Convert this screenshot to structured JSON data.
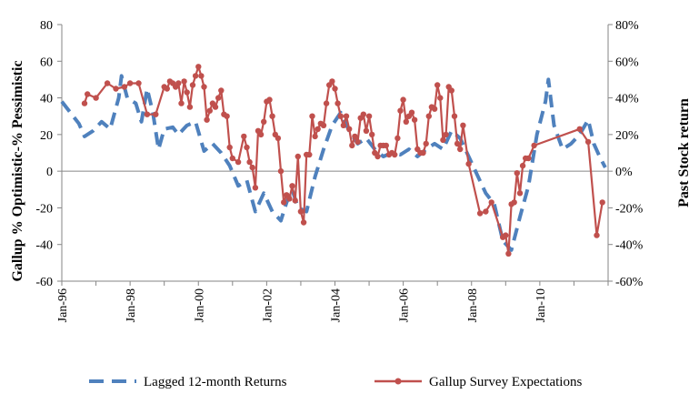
{
  "chart_data": {
    "type": "line",
    "xlabel": "",
    "ylabel_left": "Gallup % Optimistic-% Pessimistic",
    "ylabel_right": "Past Stock return",
    "y_left_range": [
      -60,
      80
    ],
    "y_right_range": [
      -60,
      80
    ],
    "y_left_ticks": [
      "80",
      "60",
      "40",
      "20",
      "0",
      "-20",
      "-40",
      "-60"
    ],
    "y_right_ticks": [
      "80%",
      "60%",
      "40%",
      "20%",
      "0%",
      "-20%",
      "-40%",
      "-60%"
    ],
    "x_ticks": [
      "Jan-96",
      "Jan-98",
      "Jan-00",
      "Jan-02",
      "Jan-04",
      "Jan-06",
      "Jan-08",
      "Jan-10"
    ],
    "x_range": [
      "1996-01",
      "2011-12"
    ],
    "grid": false,
    "legend_position": "bottom",
    "series": [
      {
        "name": "Lagged 12-month Returns",
        "color": "#4f81bd",
        "style": "dashed",
        "points": [
          [
            "1996-01",
            38
          ],
          [
            "1996-04",
            32
          ],
          [
            "1996-07",
            26
          ],
          [
            "1996-09",
            19
          ],
          [
            "1996-12",
            22
          ],
          [
            "1997-03",
            27
          ],
          [
            "1997-06",
            23
          ],
          [
            "1997-09",
            40
          ],
          [
            "1997-10",
            52
          ],
          [
            "1997-12",
            40
          ],
          [
            "1998-03",
            37
          ],
          [
            "1998-05",
            27
          ],
          [
            "1998-07",
            45
          ],
          [
            "1998-09",
            32
          ],
          [
            "1998-11",
            12
          ],
          [
            "1999-01",
            23
          ],
          [
            "1999-04",
            24
          ],
          [
            "1999-06",
            20
          ],
          [
            "1999-09",
            25
          ],
          [
            "1999-12",
            27
          ],
          [
            "2000-03",
            11
          ],
          [
            "2000-06",
            15
          ],
          [
            "2000-09",
            10
          ],
          [
            "2000-12",
            3
          ],
          [
            "2001-03",
            -8
          ],
          [
            "2001-06",
            -5
          ],
          [
            "2001-09",
            -22
          ],
          [
            "2001-12",
            -12
          ],
          [
            "2002-03",
            -22
          ],
          [
            "2002-06",
            -27
          ],
          [
            "2002-08",
            -17
          ],
          [
            "2002-10",
            -10
          ],
          [
            "2002-12",
            -20
          ],
          [
            "2003-03",
            -22
          ],
          [
            "2003-06",
            -3
          ],
          [
            "2003-09",
            12
          ],
          [
            "2003-12",
            25
          ],
          [
            "2004-03",
            32
          ],
          [
            "2004-06",
            22
          ],
          [
            "2004-09",
            15
          ],
          [
            "2004-12",
            18
          ],
          [
            "2005-03",
            12
          ],
          [
            "2005-06",
            8
          ],
          [
            "2005-09",
            10
          ],
          [
            "2005-12",
            9
          ],
          [
            "2006-03",
            12
          ],
          [
            "2006-06",
            8
          ],
          [
            "2006-09",
            12
          ],
          [
            "2006-12",
            15
          ],
          [
            "2007-03",
            12
          ],
          [
            "2007-06",
            22
          ],
          [
            "2007-09",
            18
          ],
          [
            "2007-12",
            8
          ],
          [
            "2008-03",
            -2
          ],
          [
            "2008-06",
            -12
          ],
          [
            "2008-09",
            -18
          ],
          [
            "2008-12",
            -38
          ],
          [
            "2009-03",
            -43
          ],
          [
            "2009-06",
            -25
          ],
          [
            "2009-09",
            -8
          ],
          [
            "2009-12",
            20
          ],
          [
            "2010-03",
            38
          ],
          [
            "2010-04",
            50
          ],
          [
            "2010-06",
            25
          ],
          [
            "2010-09",
            12
          ],
          [
            "2010-12",
            15
          ],
          [
            "2011-03",
            20
          ],
          [
            "2011-06",
            28
          ],
          [
            "2011-08",
            15
          ],
          [
            "2011-10",
            8
          ],
          [
            "2011-12",
            2
          ]
        ]
      },
      {
        "name": "Gallup Survey Expectations",
        "color": "#c0504d",
        "style": "solid-markers",
        "points": [
          [
            "1996-09",
            37
          ],
          [
            "1996-10",
            42
          ],
          [
            "1997-01",
            40
          ],
          [
            "1997-05",
            48
          ],
          [
            "1997-08",
            45
          ],
          [
            "1997-11",
            46
          ],
          [
            "1998-01",
            48
          ],
          [
            "1998-04",
            48
          ],
          [
            "1998-07",
            31
          ],
          [
            "1998-10",
            31
          ],
          [
            "1999-01",
            46
          ],
          [
            "1999-02",
            45
          ],
          [
            "1999-03",
            49
          ],
          [
            "1999-04",
            48
          ],
          [
            "1999-05",
            46
          ],
          [
            "1999-06",
            48
          ],
          [
            "1999-07",
            37
          ],
          [
            "1999-08",
            49
          ],
          [
            "1999-09",
            43
          ],
          [
            "1999-10",
            35
          ],
          [
            "1999-11",
            47
          ],
          [
            "1999-12",
            52
          ],
          [
            "2000-01",
            57
          ],
          [
            "2000-02",
            52
          ],
          [
            "2000-03",
            46
          ],
          [
            "2000-04",
            28
          ],
          [
            "2000-05",
            33
          ],
          [
            "2000-06",
            37
          ],
          [
            "2000-07",
            35
          ],
          [
            "2000-08",
            40
          ],
          [
            "2000-09",
            44
          ],
          [
            "2000-10",
            31
          ],
          [
            "2000-11",
            30
          ],
          [
            "2000-12",
            13
          ],
          [
            "2001-01",
            7
          ],
          [
            "2001-03",
            5
          ],
          [
            "2001-05",
            19
          ],
          [
            "2001-06",
            13
          ],
          [
            "2001-07",
            5
          ],
          [
            "2001-08",
            2
          ],
          [
            "2001-09",
            -9
          ],
          [
            "2001-10",
            22
          ],
          [
            "2001-11",
            20
          ],
          [
            "2001-12",
            27
          ],
          [
            "2002-01",
            38
          ],
          [
            "2002-02",
            39
          ],
          [
            "2002-03",
            30
          ],
          [
            "2002-04",
            20
          ],
          [
            "2002-05",
            18
          ],
          [
            "2002-06",
            0
          ],
          [
            "2002-07",
            -17
          ],
          [
            "2002-08",
            -13
          ],
          [
            "2002-09",
            -15
          ],
          [
            "2002-10",
            -8
          ],
          [
            "2002-11",
            -16
          ],
          [
            "2002-12",
            8
          ],
          [
            "2003-01",
            -22
          ],
          [
            "2003-02",
            -28
          ],
          [
            "2003-03",
            9
          ],
          [
            "2003-04",
            9
          ],
          [
            "2003-05",
            30
          ],
          [
            "2003-06",
            19
          ],
          [
            "2003-07",
            23
          ],
          [
            "2003-08",
            26
          ],
          [
            "2003-09",
            25
          ],
          [
            "2003-10",
            37
          ],
          [
            "2003-11",
            47
          ],
          [
            "2003-12",
            49
          ],
          [
            "2004-01",
            45
          ],
          [
            "2004-02",
            37
          ],
          [
            "2004-03",
            30
          ],
          [
            "2004-04",
            25
          ],
          [
            "2004-05",
            30
          ],
          [
            "2004-06",
            23
          ],
          [
            "2004-07",
            14
          ],
          [
            "2004-08",
            19
          ],
          [
            "2004-09",
            16
          ],
          [
            "2004-10",
            29
          ],
          [
            "2004-11",
            31
          ],
          [
            "2004-12",
            22
          ],
          [
            "2005-01",
            30
          ],
          [
            "2005-02",
            20
          ],
          [
            "2005-03",
            10
          ],
          [
            "2005-04",
            8
          ],
          [
            "2005-05",
            14
          ],
          [
            "2005-06",
            14
          ],
          [
            "2005-07",
            14
          ],
          [
            "2005-08",
            9
          ],
          [
            "2005-09",
            10
          ],
          [
            "2005-10",
            9
          ],
          [
            "2005-11",
            18
          ],
          [
            "2005-12",
            33
          ],
          [
            "2006-01",
            39
          ],
          [
            "2006-02",
            27
          ],
          [
            "2006-03",
            30
          ],
          [
            "2006-04",
            32
          ],
          [
            "2006-05",
            28
          ],
          [
            "2006-06",
            12
          ],
          [
            "2006-07",
            10
          ],
          [
            "2006-08",
            10
          ],
          [
            "2006-09",
            15
          ],
          [
            "2006-10",
            30
          ],
          [
            "2006-11",
            35
          ],
          [
            "2006-12",
            34
          ],
          [
            "2007-01",
            47
          ],
          [
            "2007-02",
            40
          ],
          [
            "2007-03",
            17
          ],
          [
            "2007-04",
            20
          ],
          [
            "2007-05",
            46
          ],
          [
            "2007-06",
            44
          ],
          [
            "2007-07",
            30
          ],
          [
            "2007-08",
            15
          ],
          [
            "2007-09",
            12
          ],
          [
            "2007-10",
            25
          ],
          [
            "2007-12",
            4
          ],
          [
            "2008-04",
            -23
          ],
          [
            "2008-06",
            -22
          ],
          [
            "2008-08",
            -17
          ],
          [
            "2008-12",
            -36
          ],
          [
            "2009-01",
            -35
          ],
          [
            "2009-02",
            -45
          ],
          [
            "2009-03",
            -18
          ],
          [
            "2009-04",
            -17
          ],
          [
            "2009-05",
            -1
          ],
          [
            "2009-06",
            -12
          ],
          [
            "2009-07",
            3
          ],
          [
            "2009-08",
            7
          ],
          [
            "2009-09",
            7
          ],
          [
            "2009-11",
            14
          ],
          [
            "2011-03",
            23
          ],
          [
            "2011-06",
            16
          ],
          [
            "2011-09",
            -35
          ],
          [
            "2011-11",
            -17
          ]
        ]
      }
    ]
  }
}
